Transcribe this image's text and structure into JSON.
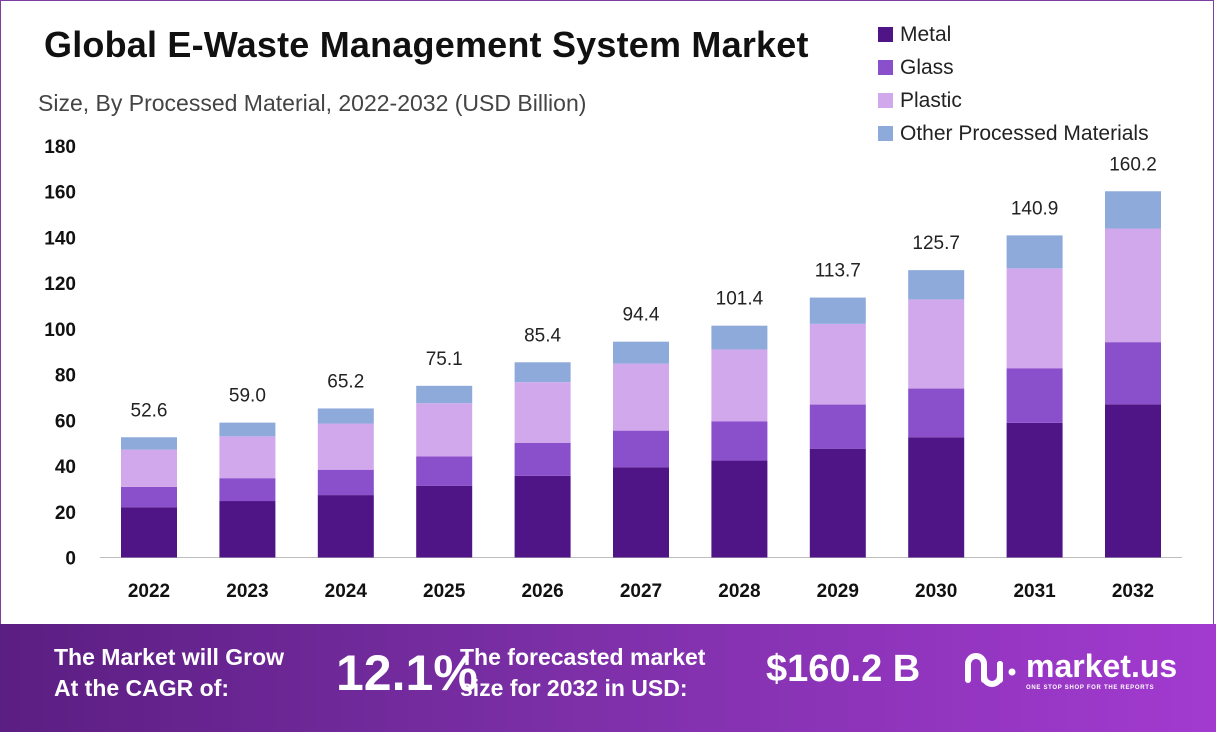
{
  "colors": {
    "metal": "#4f1586",
    "glass": "#8a4fcb",
    "plastic": "#d2a8ec",
    "other": "#8eaadb"
  },
  "chart_data": {
    "type": "bar",
    "stacked": true,
    "title": "Global E-Waste Management System Market",
    "subtitle": "Size, By Processed Material, 2022-2032 (USD Billion)",
    "xlabel": "",
    "ylabel": "",
    "ylim": [
      0,
      180
    ],
    "yticks": [
      0,
      20,
      40,
      60,
      80,
      100,
      120,
      140,
      160,
      180
    ],
    "categories": [
      "2022",
      "2023",
      "2024",
      "2025",
      "2026",
      "2027",
      "2028",
      "2029",
      "2030",
      "2031",
      "2032"
    ],
    "series": [
      {
        "name": "Metal",
        "values": [
          22.0,
          24.7,
          27.3,
          31.4,
          35.7,
          39.5,
          42.4,
          47.6,
          52.6,
          58.9,
          67.0
        ]
      },
      {
        "name": "Glass",
        "values": [
          8.9,
          10.0,
          11.1,
          12.8,
          14.5,
          16.0,
          17.2,
          19.3,
          21.3,
          23.9,
          27.2
        ]
      },
      {
        "name": "Plastic",
        "values": [
          16.3,
          18.3,
          20.2,
          23.3,
          26.5,
          29.3,
          31.4,
          35.3,
          39.0,
          43.7,
          49.7
        ]
      },
      {
        "name": "Other Processed Materials",
        "values": [
          5.4,
          6.0,
          6.6,
          7.6,
          8.7,
          9.6,
          10.4,
          11.5,
          12.8,
          14.4,
          16.3
        ]
      }
    ],
    "totals": [
      "52.6",
      "59.0",
      "65.2",
      "75.1",
      "85.4",
      "94.4",
      "101.4",
      "113.7",
      "125.7",
      "140.9",
      "160.2"
    ]
  },
  "banner": {
    "cagr_text_line1": "The Market will Grow",
    "cagr_text_line2": "At the CAGR of:",
    "cagr_value": "12.1%",
    "forecast_text_line1": "The forecasted market",
    "forecast_text_line2": "size for 2032 in USD:",
    "forecast_value": "$160.2 B",
    "brand_name": "market.us",
    "brand_tagline": "ONE STOP SHOP FOR THE REPORTS"
  }
}
